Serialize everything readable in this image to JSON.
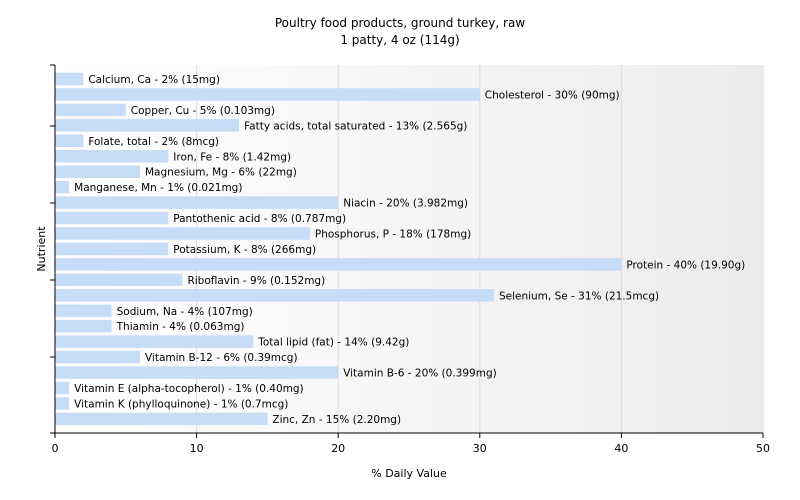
{
  "chart_data": {
    "type": "bar",
    "orientation": "horizontal",
    "title": "Poultry food products, ground turkey, raw",
    "subtitle": "1 patty, 4 oz (114g)",
    "xlabel": "% Daily Value",
    "ylabel": "Nutrient",
    "xlim": [
      0,
      50
    ],
    "xticks": [
      0,
      10,
      20,
      30,
      40,
      50
    ],
    "grid": true,
    "bar_color": "#c6dcf7",
    "categories": [
      "Calcium, Ca",
      "Cholesterol",
      "Copper, Cu",
      "Fatty acids, total saturated",
      "Folate, total",
      "Iron, Fe",
      "Magnesium, Mg",
      "Manganese, Mn",
      "Niacin",
      "Pantothenic acid",
      "Phosphorus, P",
      "Potassium, K",
      "Protein",
      "Riboflavin",
      "Selenium, Se",
      "Sodium, Na",
      "Thiamin",
      "Total lipid (fat)",
      "Vitamin B-12",
      "Vitamin B-6",
      "Vitamin E (alpha-tocopherol)",
      "Vitamin K (phylloquinone)",
      "Zinc, Zn"
    ],
    "values": [
      2,
      30,
      5,
      13,
      2,
      8,
      6,
      1,
      20,
      8,
      18,
      8,
      40,
      9,
      31,
      4,
      4,
      14,
      6,
      20,
      1,
      1,
      15
    ],
    "labels": [
      "Calcium, Ca - 2% (15mg)",
      "Cholesterol - 30% (90mg)",
      "Copper, Cu - 5% (0.103mg)",
      "Fatty acids, total saturated - 13% (2.565g)",
      "Folate, total - 2% (8mcg)",
      "Iron, Fe - 8% (1.42mg)",
      "Magnesium, Mg - 6% (22mg)",
      "Manganese, Mn - 1% (0.021mg)",
      "Niacin - 20% (3.982mg)",
      "Pantothenic acid - 8% (0.787mg)",
      "Phosphorus, P - 18% (178mg)",
      "Potassium, K - 8% (266mg)",
      "Protein - 40% (19.90g)",
      "Riboflavin - 9% (0.152mg)",
      "Selenium, Se - 31% (21.5mcg)",
      "Sodium, Na - 4% (107mg)",
      "Thiamin - 4% (0.063mg)",
      "Total lipid (fat) - 14% (9.42g)",
      "Vitamin B-12 - 6% (0.39mcg)",
      "Vitamin B-6 - 20% (0.399mg)",
      "Vitamin E (alpha-tocopherol) - 1% (0.40mg)",
      "Vitamin K (phylloquinone) - 1% (0.7mcg)",
      "Zinc, Zn - 15% (2.20mg)"
    ]
  }
}
